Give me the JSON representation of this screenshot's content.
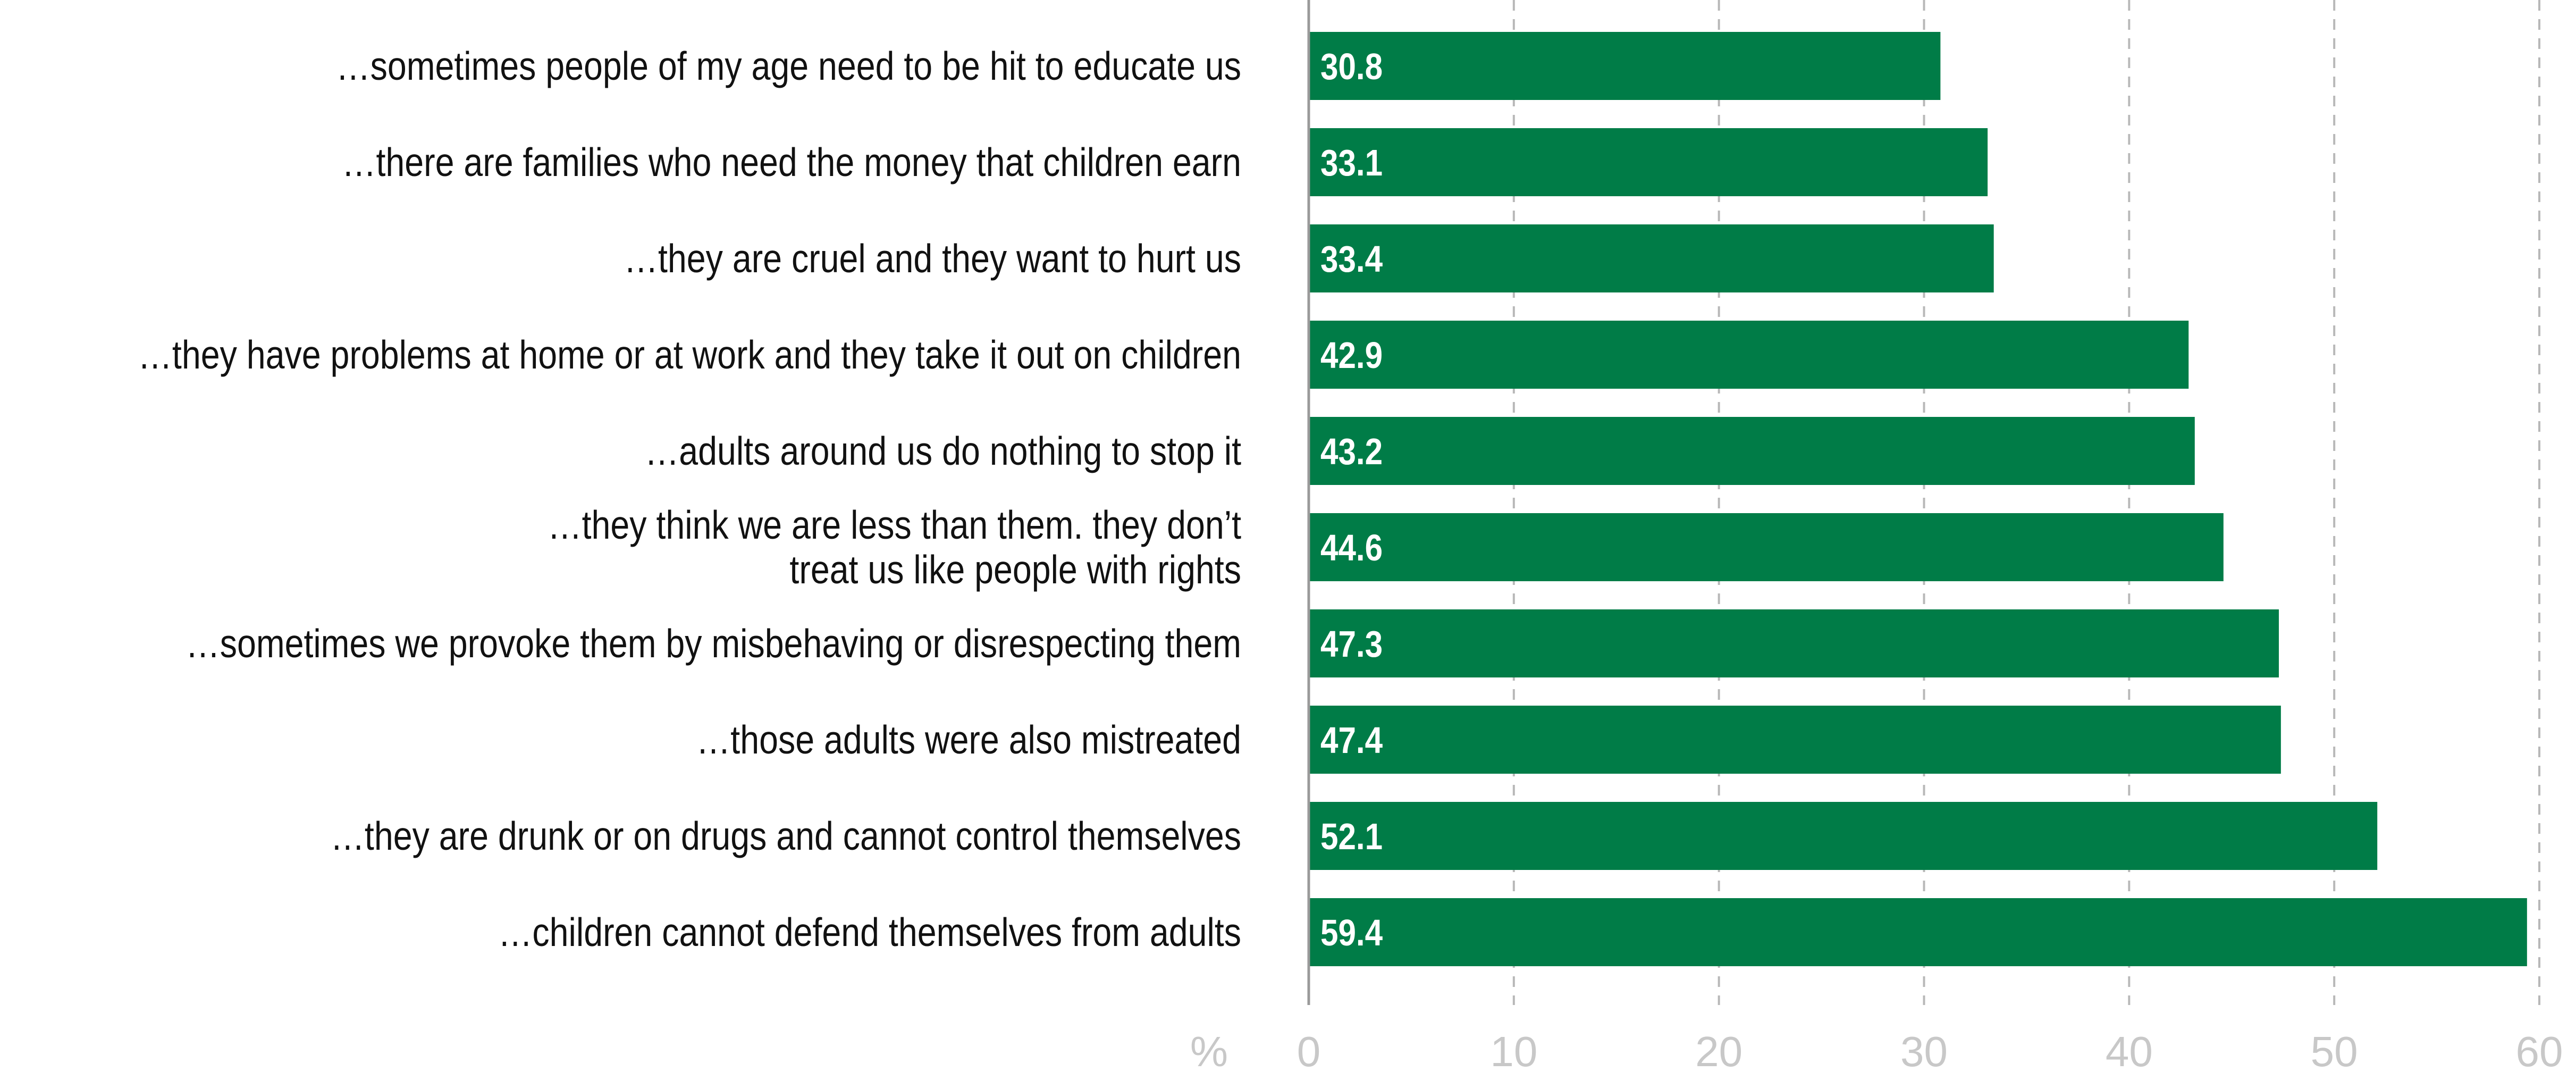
{
  "chart_data": {
    "type": "bar",
    "orientation": "horizontal",
    "unit_label": "%",
    "bar_color": "#007C47",
    "value_label_color": "#ffffff",
    "xlim": [
      0,
      60
    ],
    "x_ticks": [
      0,
      10,
      20,
      30,
      40,
      50,
      60
    ],
    "grid": true,
    "categories": [
      [
        "…sometimes people of my age need to be hit to educate us"
      ],
      [
        "…there are families who need the money that children earn"
      ],
      [
        "…they are cruel and they want to hurt us"
      ],
      [
        "…they have problems at home or at work and they take it out on children"
      ],
      [
        "…adults around us do nothing to stop it"
      ],
      [
        "…they think we are less than them. they don’t",
        "treat us like people with rights"
      ],
      [
        "…sometimes we provoke them by misbehaving or disrespecting them"
      ],
      [
        "…those adults were also mistreated"
      ],
      [
        "…they are drunk or on drugs and cannot control themselves"
      ],
      [
        "…children cannot defend themselves from adults"
      ]
    ],
    "values": [
      30.8,
      33.1,
      33.4,
      42.9,
      43.2,
      44.6,
      47.3,
      47.4,
      52.1,
      59.4
    ],
    "value_labels": [
      "30.8",
      "33.1",
      "33.4",
      "42.9",
      "43.2",
      "44.6",
      "47.3",
      "47.4",
      "52.1",
      "59.4"
    ]
  }
}
